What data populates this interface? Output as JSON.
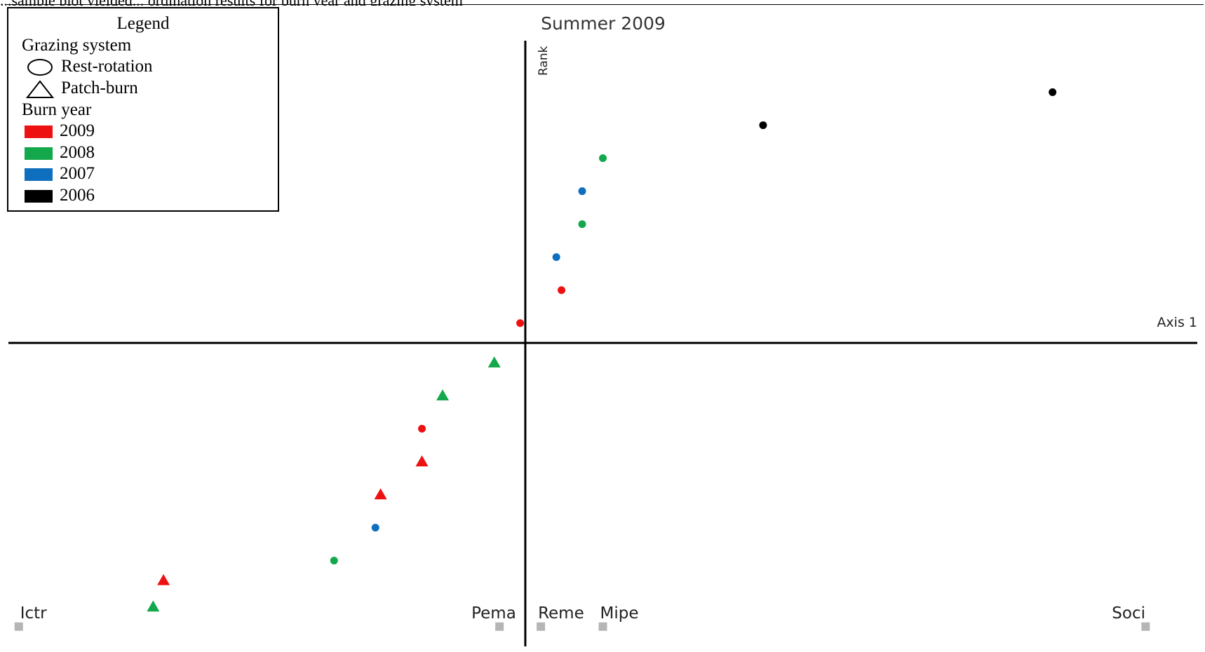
{
  "page_header_fragment": "...sample plot yielded... ordination results for burn year and grazing system",
  "legend": {
    "title": "Legend",
    "grazing_heading": "Grazing system",
    "grazing_items": [
      {
        "label": "Rest-rotation",
        "shape": "ellipse-outline-icon"
      },
      {
        "label": "Patch-burn",
        "shape": "triangle-outline-icon"
      }
    ],
    "burn_heading": "Burn year",
    "burn_items": [
      {
        "label": "2009",
        "color": "#ee1111"
      },
      {
        "label": "2008",
        "color": "#13a84c"
      },
      {
        "label": "2007",
        "color": "#0e6fbf"
      },
      {
        "label": "2006",
        "color": "#000000"
      }
    ]
  },
  "chart_data": {
    "type": "scatter",
    "title": "Summer 2009",
    "xlabel": "Axis 1",
    "ylabel": "Rank",
    "xlim": [
      -1.0,
      1.3
    ],
    "ylim": [
      -0.46,
      0.49
    ],
    "grid": false,
    "legend_position": "top-left",
    "series": [
      {
        "name": "Rest-rotation 2009",
        "marker": "circle",
        "color": "#ee1111",
        "points": [
          [
            -0.01,
            0.03
          ],
          [
            0.07,
            0.08
          ],
          [
            -0.2,
            -0.13
          ]
        ]
      },
      {
        "name": "Rest-rotation 2008",
        "marker": "circle",
        "color": "#13a84c",
        "points": [
          [
            0.15,
            0.28
          ],
          [
            0.11,
            0.18
          ],
          [
            -0.37,
            -0.33
          ]
        ]
      },
      {
        "name": "Rest-rotation 2007",
        "marker": "circle",
        "color": "#0e6fbf",
        "points": [
          [
            0.11,
            0.23
          ],
          [
            0.06,
            0.13
          ],
          [
            -0.29,
            -0.28
          ]
        ]
      },
      {
        "name": "Rest-rotation 2006",
        "marker": "circle",
        "color": "#000000",
        "points": [
          [
            0.46,
            0.33
          ],
          [
            1.02,
            0.38
          ]
        ]
      },
      {
        "name": "Patch-burn 2009",
        "marker": "triangle",
        "color": "#ee1111",
        "points": [
          [
            -0.2,
            -0.18
          ],
          [
            -0.28,
            -0.23
          ],
          [
            -0.7,
            -0.36
          ]
        ]
      },
      {
        "name": "Patch-burn 2008",
        "marker": "triangle",
        "color": "#13a84c",
        "points": [
          [
            -0.06,
            -0.03
          ],
          [
            -0.16,
            -0.08
          ],
          [
            -0.72,
            -0.4
          ]
        ]
      }
    ],
    "species": [
      {
        "label": "Ictr",
        "x": -0.98,
        "y": -0.43
      },
      {
        "label": "Pema",
        "x": -0.05,
        "y": -0.43
      },
      {
        "label": "Reme",
        "x": 0.03,
        "y": -0.43
      },
      {
        "label": "Mipe",
        "x": 0.15,
        "y": -0.43
      },
      {
        "label": "Soci",
        "x": 1.2,
        "y": -0.43
      }
    ]
  }
}
